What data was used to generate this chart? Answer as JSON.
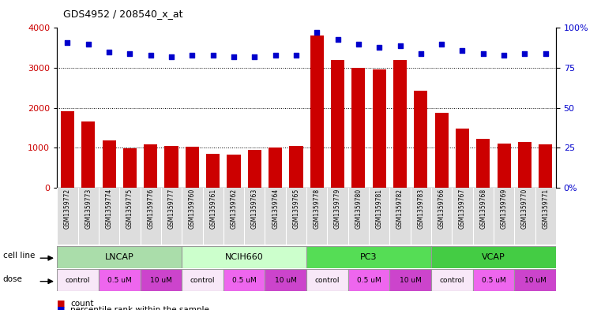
{
  "title": "GDS4952 / 208540_x_at",
  "samples": [
    "GSM1359772",
    "GSM1359773",
    "GSM1359774",
    "GSM1359775",
    "GSM1359776",
    "GSM1359777",
    "GSM1359760",
    "GSM1359761",
    "GSM1359762",
    "GSM1359763",
    "GSM1359764",
    "GSM1359765",
    "GSM1359778",
    "GSM1359779",
    "GSM1359780",
    "GSM1359781",
    "GSM1359782",
    "GSM1359783",
    "GSM1359766",
    "GSM1359767",
    "GSM1359768",
    "GSM1359769",
    "GSM1359770",
    "GSM1359771"
  ],
  "counts": [
    1920,
    1650,
    1180,
    980,
    1080,
    1040,
    1020,
    850,
    820,
    950,
    1000,
    1050,
    3800,
    3200,
    3000,
    2950,
    3200,
    2420,
    1870,
    1480,
    1220,
    1100,
    1150,
    1080
  ],
  "percentiles": [
    91,
    90,
    85,
    84,
    83,
    82,
    83,
    83,
    82,
    82,
    83,
    83,
    97,
    93,
    90,
    88,
    89,
    84,
    90,
    86,
    84,
    83,
    84,
    84
  ],
  "bar_color": "#cc0000",
  "dot_color": "#0000cc",
  "cell_lines": [
    {
      "name": "LNCAP",
      "start": 0,
      "end": 6,
      "color": "#aaddaa"
    },
    {
      "name": "NCIH660",
      "start": 6,
      "end": 12,
      "color": "#ccffcc"
    },
    {
      "name": "PC3",
      "start": 12,
      "end": 18,
      "color": "#55dd55"
    },
    {
      "name": "VCAP",
      "start": 18,
      "end": 24,
      "color": "#44cc44"
    }
  ],
  "doses": [
    {
      "label": "control",
      "start": 0,
      "end": 2,
      "color": "#f8e8f8"
    },
    {
      "label": "0.5 uM",
      "start": 2,
      "end": 4,
      "color": "#ee66ee"
    },
    {
      "label": "10 uM",
      "start": 4,
      "end": 6,
      "color": "#cc44cc"
    },
    {
      "label": "control",
      "start": 6,
      "end": 8,
      "color": "#f8e8f8"
    },
    {
      "label": "0.5 uM",
      "start": 8,
      "end": 10,
      "color": "#ee66ee"
    },
    {
      "label": "10 uM",
      "start": 10,
      "end": 12,
      "color": "#cc44cc"
    },
    {
      "label": "control",
      "start": 12,
      "end": 14,
      "color": "#f8e8f8"
    },
    {
      "label": "0.5 uM",
      "start": 14,
      "end": 16,
      "color": "#ee66ee"
    },
    {
      "label": "10 uM",
      "start": 16,
      "end": 18,
      "color": "#cc44cc"
    },
    {
      "label": "control",
      "start": 18,
      "end": 20,
      "color": "#f8e8f8"
    },
    {
      "label": "0.5 uM",
      "start": 20,
      "end": 22,
      "color": "#ee66ee"
    },
    {
      "label": "10 uM",
      "start": 22,
      "end": 24,
      "color": "#cc44cc"
    }
  ],
  "ylim_left": [
    0,
    4000
  ],
  "ylim_right": [
    0,
    100
  ],
  "yticks_left": [
    0,
    1000,
    2000,
    3000,
    4000
  ],
  "yticks_right": [
    0,
    25,
    50,
    75,
    100
  ],
  "yticklabels_right": [
    "0%",
    "25",
    "50",
    "75",
    "100%"
  ],
  "grid_vals": [
    1000,
    2000,
    3000
  ],
  "grid_color": "#888888",
  "bg_color": "#ffffff",
  "plot_bg": "#ffffff",
  "xtick_bg": "#dddddd"
}
